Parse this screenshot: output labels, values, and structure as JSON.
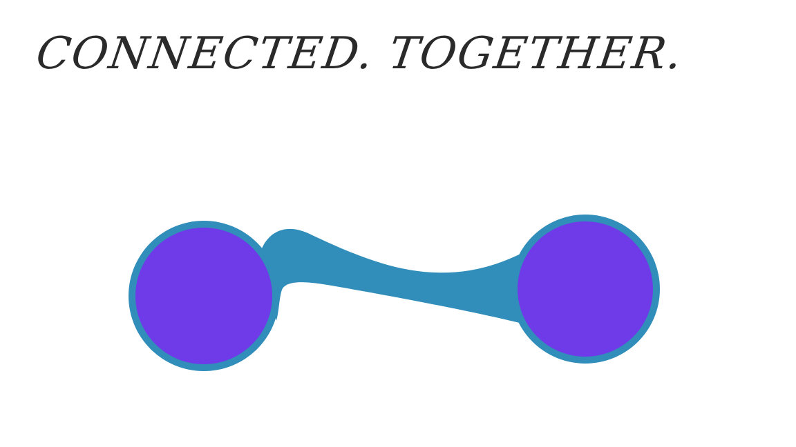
{
  "headline": {
    "text": "CONNECTED. TOGETHER."
  },
  "colors": {
    "text": "#2a2a2a",
    "node_fill": "#6f3be8",
    "link_and_outline": "#318db9",
    "background": "#ffffff"
  },
  "illustration": {
    "nodes": [
      {
        "name": "left-node"
      },
      {
        "name": "right-node"
      }
    ],
    "link": {
      "name": "connecting-band"
    }
  }
}
